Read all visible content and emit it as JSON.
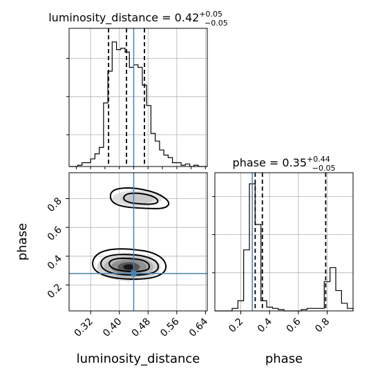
{
  "chart_data": [
    {
      "type": "histogram",
      "parameter": "luminosity_distance",
      "title": {
        "main": "luminosity_distance = 0.42",
        "sup": "+0.05",
        "sub": "−0.05"
      },
      "xlim": [
        0.26,
        0.645
      ],
      "bin_edges": [
        0.26,
        0.272,
        0.284,
        0.296,
        0.308,
        0.32,
        0.332,
        0.344,
        0.356,
        0.368,
        0.38,
        0.392,
        0.404,
        0.416,
        0.428,
        0.44,
        0.452,
        0.464,
        0.476,
        0.488,
        0.5,
        0.512,
        0.524,
        0.536,
        0.548,
        0.56,
        0.572,
        0.584,
        0.596,
        0.608,
        0.62,
        0.632,
        0.644
      ],
      "density": [
        0.0,
        0.0,
        0.01,
        0.03,
        0.03,
        0.06,
        0.1,
        0.15,
        0.5,
        0.75,
        0.98,
        0.92,
        0.93,
        0.9,
        0.78,
        0.8,
        0.78,
        0.64,
        0.48,
        0.26,
        0.2,
        0.13,
        0.09,
        0.07,
        0.03,
        0.03,
        0.01,
        0.02,
        0.0,
        0.01,
        0.0,
        0.0
      ],
      "quantiles": [
        0.37,
        0.42,
        0.47
      ],
      "truth": 0.44
    },
    {
      "type": "scatter",
      "subtype": "2d-density-contour",
      "x_parameter": "luminosity_distance",
      "y_parameter": "phase",
      "xlim": [
        0.26,
        0.645
      ],
      "ylim": [
        0.02,
        0.98
      ],
      "xticks": [
        "0.32",
        "0.40",
        "0.48",
        "0.56",
        "0.64"
      ],
      "yticks": [
        "0.2",
        "0.4",
        "0.6",
        "0.8"
      ],
      "xlabel": "luminosity_distance",
      "ylabel": "phase",
      "truth": [
        0.44,
        0.28
      ],
      "modes": [
        {
          "x_center": 0.43,
          "y_center": 0.32,
          "weight": 0.72
        },
        {
          "x_center": 0.45,
          "y_center": 0.8,
          "weight": 0.28
        }
      ]
    },
    {
      "type": "histogram",
      "parameter": "phase",
      "title": {
        "main": "phase = 0.35",
        "sup": "+0.44",
        "sub": "−0.05"
      },
      "xlim": [
        0.02,
        0.98
      ],
      "xticks": [
        "0.2",
        "0.4",
        "0.6",
        "0.8"
      ],
      "xlabel": "phase",
      "bin_edges": [
        0.02,
        0.06,
        0.1,
        0.14,
        0.18,
        0.22,
        0.26,
        0.3,
        0.34,
        0.38,
        0.42,
        0.46,
        0.5,
        0.54,
        0.58,
        0.62,
        0.66,
        0.7,
        0.74,
        0.78,
        0.82,
        0.86,
        0.9,
        0.94,
        0.98
      ],
      "density": [
        0.0,
        0.0,
        0.0,
        0.02,
        0.08,
        0.48,
        1.0,
        0.68,
        0.08,
        0.03,
        0.02,
        0.01,
        0.0,
        0.0,
        0.0,
        0.01,
        0.02,
        0.02,
        0.02,
        0.23,
        0.34,
        0.16,
        0.06,
        0.02
      ],
      "quantiles": [
        0.3,
        0.35,
        0.79
      ],
      "truth": 0.28
    }
  ]
}
